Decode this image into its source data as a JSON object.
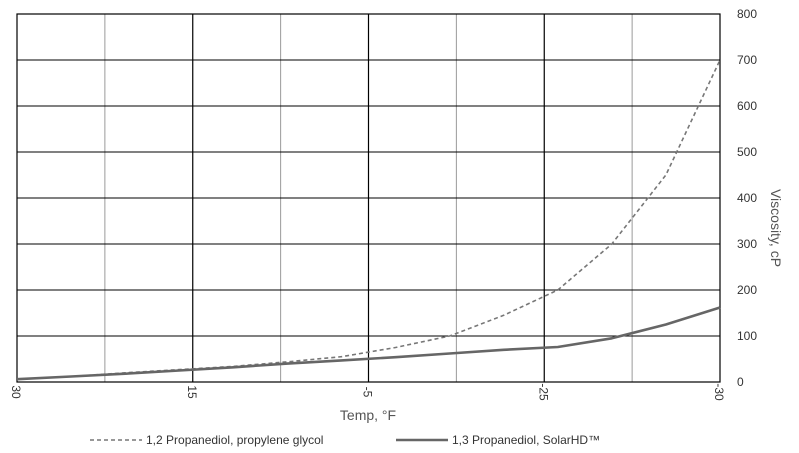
{
  "chart_data": {
    "type": "line",
    "xlabel": "Temp, °F",
    "ylabel": "Viscosity, cP",
    "x_tick_labels": [
      "30",
      "15",
      "-5",
      "-25",
      "-30"
    ],
    "ylim": [
      0,
      800
    ],
    "y_ticks": [
      0,
      100,
      200,
      300,
      400,
      500,
      600,
      700,
      800
    ],
    "grid": true,
    "legend_position": "bottom",
    "x": [
      30,
      20,
      15,
      10,
      5,
      0,
      -5,
      -10,
      -15,
      -20,
      -25,
      -30,
      -35,
      -40
    ],
    "series": [
      {
        "name": "1,2 Propanediol, propylene glycol",
        "style": "dashed",
        "color": "#777777",
        "values": [
          6,
          12,
          20,
          27,
          34,
          44,
          55,
          75,
          100,
          145,
          200,
          300,
          450,
          700
        ]
      },
      {
        "name": "1,3 Propanediol, SolarHD™",
        "style": "solid",
        "color": "#666666",
        "values": [
          6,
          12,
          18,
          25,
          32,
          40,
          47,
          54,
          62,
          70,
          76,
          95,
          125,
          162
        ]
      }
    ]
  }
}
